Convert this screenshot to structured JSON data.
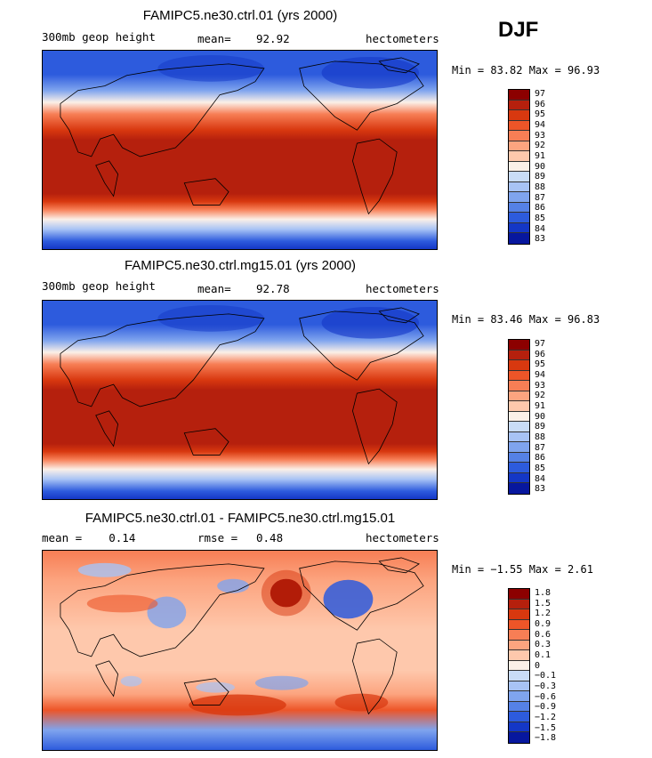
{
  "season": "DJF",
  "panels": [
    {
      "title": "FAMIPC5.ne30.ctrl.01 (yrs 2000)",
      "left_label": "300mb geop height",
      "stat_label": "mean=",
      "stat_value": "92.92",
      "units": "hectometers",
      "min_max": "Min =  83.82 Max =  96.93",
      "colorbar_labels": [
        "97",
        "96",
        "95",
        "94",
        "93",
        "92",
        "91",
        "90",
        "89",
        "88",
        "87",
        "86",
        "85",
        "84",
        "83"
      ],
      "colorbar_colors": [
        "#8c0000",
        "#b5200d",
        "#d8380f",
        "#ed5528",
        "#f77e55",
        "#fca47f",
        "#fec8ac",
        "#fbf0e8",
        "#c9dcf7",
        "#a8c3f5",
        "#7fa4ee",
        "#5581e6",
        "#2d5bdd",
        "#1437c6",
        "#07179e"
      ]
    },
    {
      "title": "FAMIPC5.ne30.ctrl.mg15.01 (yrs 2000)",
      "left_label": "300mb geop height",
      "stat_label": "mean=",
      "stat_value": "92.78",
      "units": "hectometers",
      "min_max": "Min =  83.46 Max =  96.83",
      "colorbar_labels": [
        "97",
        "96",
        "95",
        "94",
        "93",
        "92",
        "91",
        "90",
        "89",
        "88",
        "87",
        "86",
        "85",
        "84",
        "83"
      ],
      "colorbar_colors": [
        "#8c0000",
        "#b5200d",
        "#d8380f",
        "#ed5528",
        "#f77e55",
        "#fca47f",
        "#fec8ac",
        "#fbf0e8",
        "#c9dcf7",
        "#a8c3f5",
        "#7fa4ee",
        "#5581e6",
        "#2d5bdd",
        "#1437c6",
        "#07179e"
      ]
    },
    {
      "title": "FAMIPC5.ne30.ctrl.01 - FAMIPC5.ne30.ctrl.mg15.01",
      "left_label": "mean =    0.14",
      "stat_label": "rmse =",
      "stat_value": "0.48",
      "units": "hectometers",
      "min_max": "Min =  −1.55 Max =   2.61",
      "colorbar_labels": [
        "1.8",
        "1.5",
        "1.2",
        "0.9",
        "0.6",
        "0.3",
        "0.1",
        "0",
        "−0.1",
        "−0.3",
        "−0.6",
        "−0.9",
        "−1.2",
        "−1.5",
        "−1.8"
      ],
      "colorbar_colors": [
        "#8c0000",
        "#b5200d",
        "#d8380f",
        "#ed5528",
        "#f77e55",
        "#fca47f",
        "#fec8ac",
        "#fbf0e8",
        "#c9dcf7",
        "#a8c3f5",
        "#7fa4ee",
        "#5581e6",
        "#2d5bdd",
        "#1437c6",
        "#07179e"
      ]
    }
  ]
}
